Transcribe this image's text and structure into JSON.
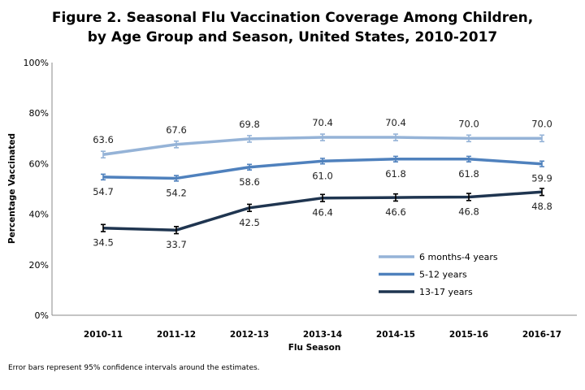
{
  "chart_data": {
    "type": "line",
    "title_line1": "Figure 2. Seasonal Flu Vaccination Coverage Among Children,",
    "title_line2": "by Age Group and Season, United States, 2010-2017",
    "xlabel": "Flu Season",
    "ylabel": "Percentage Vaccinated",
    "categories": [
      "2010-11",
      "2011-12",
      "2012-13",
      "2013-14",
      "2014-15",
      "2015-16",
      "2016-17"
    ],
    "ylim": [
      0,
      100
    ],
    "yticks": [
      0,
      20,
      40,
      60,
      80,
      100
    ],
    "ytick_labels": [
      "0%",
      "20%",
      "40%",
      "60%",
      "80%",
      "100%"
    ],
    "grid": false,
    "legend_position": "bottom-right",
    "series": [
      {
        "name": "6 months-4 years",
        "color": "#95b3d7",
        "values": [
          63.6,
          67.6,
          69.8,
          70.4,
          70.4,
          70.0,
          70.0
        ],
        "labels": [
          "63.6",
          "67.6",
          "69.8",
          "70.4",
          "70.4",
          "70.0",
          "70.0"
        ],
        "label_side": "above"
      },
      {
        "name": "5-12 years",
        "color": "#4f81bd",
        "values": [
          54.7,
          54.2,
          58.6,
          61.0,
          61.8,
          61.8,
          59.9
        ],
        "labels": [
          "54.7",
          "54.2",
          "58.6",
          "61.0",
          "61.8",
          "61.8",
          "59.9"
        ],
        "label_side": "below"
      },
      {
        "name": "13-17 years",
        "color": "#1f3550",
        "values": [
          34.5,
          33.7,
          42.5,
          46.4,
          46.6,
          46.8,
          48.8
        ],
        "labels": [
          "34.5",
          "33.7",
          "42.5",
          "46.4",
          "46.6",
          "46.8",
          "48.8"
        ],
        "label_side": "below"
      }
    ],
    "footnote": "Error bars represent 95% confidence intervals around the estimates."
  }
}
